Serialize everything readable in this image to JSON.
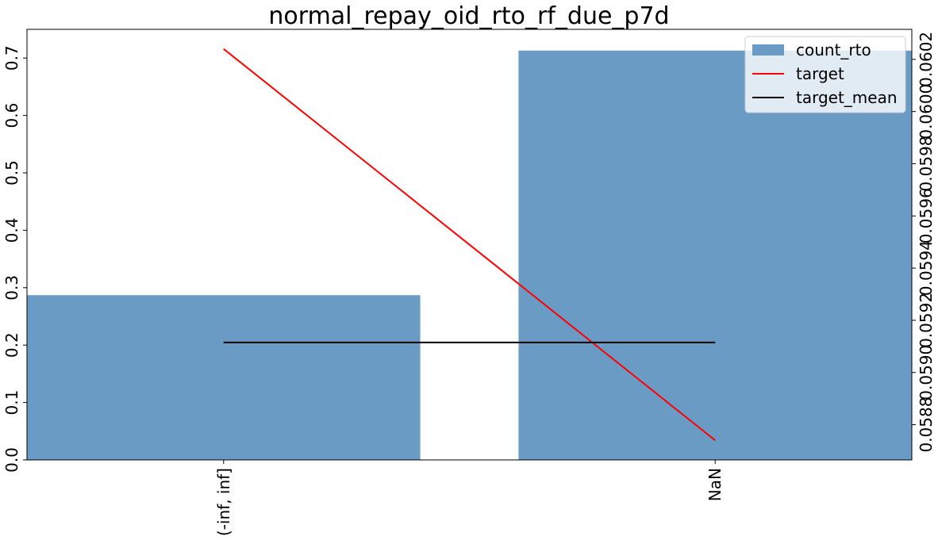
{
  "chart_data": {
    "type": "bar",
    "title": "normal_repay_oid_rto_rf_due_p7d",
    "categories": [
      "(-inf, inf]",
      "NaN"
    ],
    "series": [
      {
        "name": "count_rto",
        "type": "bar",
        "axis": "left",
        "values": [
          0.287,
          0.713
        ],
        "color": "#6a9bc4"
      },
      {
        "name": "target",
        "type": "line",
        "axis": "right",
        "values": [
          0.06024,
          0.05874
        ],
        "color": "#ff0000"
      },
      {
        "name": "target_mean",
        "type": "line",
        "axis": "right",
        "values": [
          0.059115,
          0.059115
        ],
        "color": "#000000"
      }
    ],
    "ylim_left": [
      0,
      0.75
    ],
    "yticks_left": [
      "0.0",
      "0.1",
      "0.2",
      "0.3",
      "0.4",
      "0.5",
      "0.6",
      "0.7"
    ],
    "yticks_left_values": [
      0.0,
      0.1,
      0.2,
      0.3,
      0.4,
      0.5,
      0.6,
      0.7
    ],
    "ylim_right": [
      0.058665,
      0.060315
    ],
    "yticks_right": [
      "0.0588",
      "0.0590",
      "0.0592",
      "0.0594",
      "0.0596",
      "0.0598",
      "0.0600",
      "0.0602"
    ],
    "yticks_right_values": [
      0.0588,
      0.059,
      0.0592,
      0.0594,
      0.0596,
      0.0598,
      0.06,
      0.0602
    ],
    "legend_position": "top-right",
    "grid": false
  }
}
